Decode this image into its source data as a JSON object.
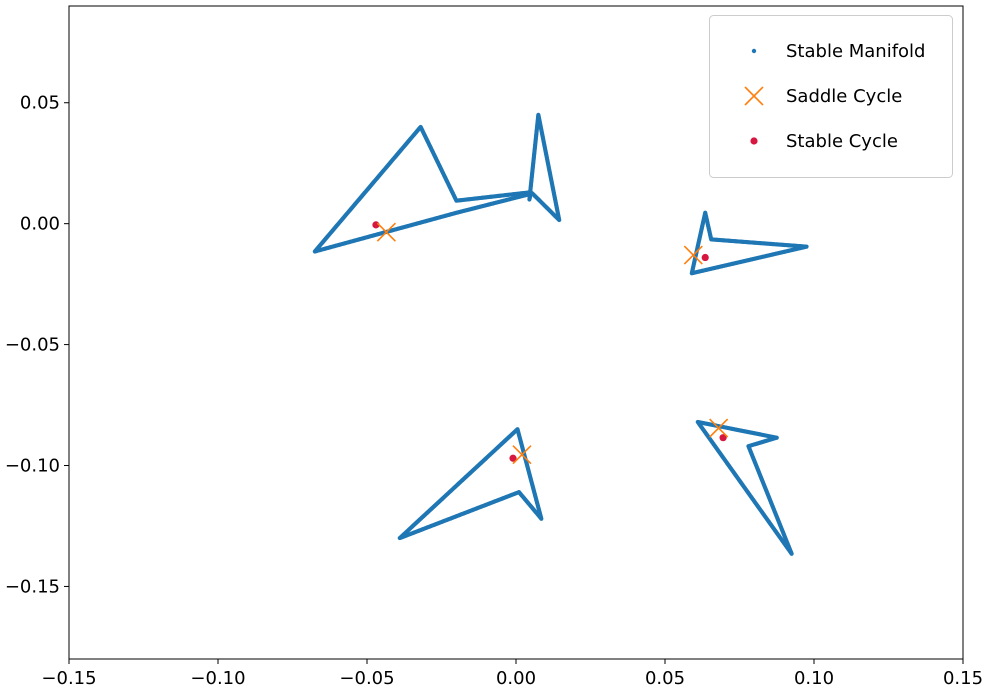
{
  "chart_data": {
    "type": "scatter",
    "xlim": [
      -0.15,
      0.15
    ],
    "ylim": [
      -0.18,
      0.09
    ],
    "xticks": [
      -0.15,
      -0.1,
      -0.05,
      0.0,
      0.05,
      0.1,
      0.15
    ],
    "xtick_labels": [
      "−0.15",
      "−0.10",
      "−0.05",
      "0.00",
      "0.05",
      "0.10",
      "0.15"
    ],
    "yticks": [
      0.05,
      0.0,
      -0.05,
      -0.1,
      -0.15
    ],
    "ytick_labels": [
      "0.05",
      "0.00",
      "−0.05",
      "−0.10",
      "−0.15"
    ],
    "grid": false,
    "legend_position": "top-right",
    "series": [
      {
        "name": "Stable Manifold",
        "marker": "dot",
        "color": "#1f77b4",
        "loops": [
          [
            [
              -0.032,
              0.04
            ],
            [
              -0.02,
              0.0095
            ],
            [
              0.005,
              0.013
            ],
            [
              0.0045,
              0.01
            ],
            [
              0.0075,
              0.045
            ],
            [
              0.0145,
              0.0015
            ],
            [
              0.0055,
              0.0125
            ],
            [
              -0.02,
              0.0045
            ],
            [
              -0.0675,
              -0.0115
            ],
            [
              -0.032,
              0.04
            ]
          ],
          [
            [
              0.0635,
              0.0045
            ],
            [
              0.0655,
              -0.0065
            ],
            [
              0.0975,
              -0.0095
            ],
            [
              0.059,
              -0.0205
            ],
            [
              0.0635,
              0.0045
            ]
          ],
          [
            [
              0.0005,
              -0.085
            ],
            [
              -0.039,
              -0.13
            ],
            [
              0.001,
              -0.111
            ],
            [
              0.0085,
              -0.122
            ],
            [
              0.0005,
              -0.085
            ]
          ],
          [
            [
              0.061,
              -0.082
            ],
            [
              0.0875,
              -0.0885
            ],
            [
              0.078,
              -0.092
            ],
            [
              0.0925,
              -0.1365
            ],
            [
              0.061,
              -0.082
            ]
          ]
        ]
      },
      {
        "name": "Saddle Cycle",
        "marker": "x",
        "color": "#ff7f0e",
        "points": [
          [
            -0.0435,
            -0.0035
          ],
          [
            0.0595,
            -0.013
          ],
          [
            0.002,
            -0.0955
          ],
          [
            0.068,
            -0.0845
          ]
        ]
      },
      {
        "name": "Stable Cycle",
        "marker": "circle",
        "color": "#d6173f",
        "points": [
          [
            -0.047,
            -0.0005
          ],
          [
            0.0635,
            -0.014
          ],
          [
            -0.001,
            -0.097
          ],
          [
            0.0695,
            -0.0885
          ]
        ]
      }
    ]
  }
}
